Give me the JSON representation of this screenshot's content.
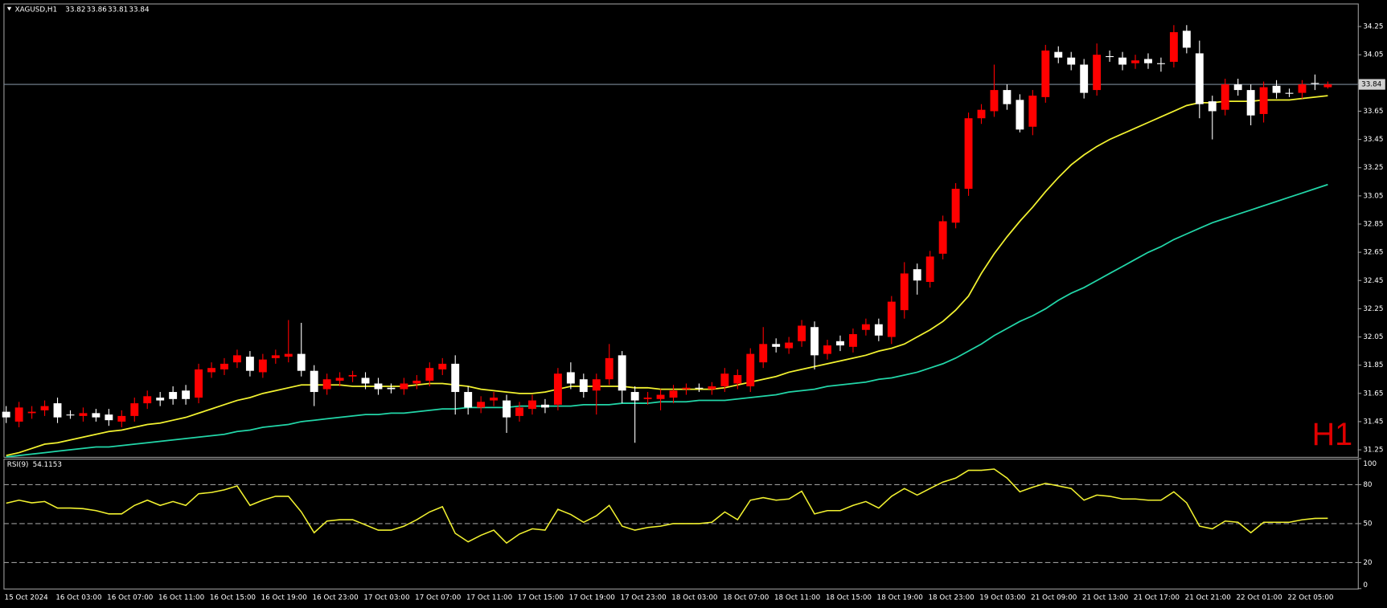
{
  "chart_data": [
    {
      "type": "candlestick",
      "title": "XAGUSD,H1",
      "watermark": "H1",
      "categories": [
        "15 Oct 2024",
        null,
        null,
        null,
        "16 Oct 03:00",
        null,
        null,
        null,
        "16 Oct 07:00",
        null,
        null,
        null,
        "16 Oct 11:00",
        null,
        null,
        null,
        "16 Oct 15:00",
        null,
        null,
        null,
        "16 Oct 19:00",
        null,
        null,
        null,
        "16 Oct 23:00",
        null,
        null,
        null,
        "17 Oct 03:00",
        null,
        null,
        null,
        "17 Oct 07:00",
        null,
        null,
        null,
        "17 Oct 11:00",
        null,
        null,
        null,
        "17 Oct 15:00",
        null,
        null,
        null,
        "17 Oct 19:00",
        null,
        null,
        null,
        "17 Oct 23:00",
        null,
        null,
        null,
        "18 Oct 03:00",
        null,
        null,
        null,
        "18 Oct 07:00",
        null,
        null,
        null,
        "18 Oct 11:00",
        null,
        null,
        null,
        "18 Oct 15:00",
        null,
        null,
        null,
        "18 Oct 19:00",
        null,
        null,
        null,
        "18 Oct 23:00",
        null,
        null,
        null,
        "19 Oct 03:00",
        null,
        null,
        null,
        "21 Oct 09:00",
        null,
        null,
        null,
        "21 Oct 13:00",
        null,
        null,
        null,
        "21 Oct 17:00",
        null,
        null,
        null,
        "21 Oct 21:00",
        null,
        null,
        null,
        "22 Oct 01:00",
        null,
        null,
        null,
        "22 Oct 05:00",
        null,
        null,
        null
      ],
      "open": [
        31.52,
        31.45,
        31.51,
        31.53,
        31.58,
        31.5,
        31.49,
        31.51,
        31.5,
        31.45,
        31.49,
        31.58,
        31.62,
        31.66,
        31.67,
        31.62,
        31.8,
        31.82,
        31.87,
        31.91,
        31.8,
        31.9,
        31.91,
        31.93,
        31.81,
        31.68,
        31.74,
        31.77,
        31.76,
        31.72,
        31.69,
        31.68,
        31.72,
        31.74,
        31.82,
        31.86,
        31.66,
        31.55,
        31.6,
        31.6,
        31.49,
        31.54,
        31.57,
        31.57,
        31.8,
        31.75,
        31.67,
        31.75,
        31.92,
        31.66,
        31.61,
        31.61,
        31.62,
        31.68,
        31.69,
        31.68,
        31.7,
        31.72,
        31.7,
        31.87,
        32.0,
        31.97,
        32.02,
        32.12,
        31.93,
        32.02,
        31.98,
        32.1,
        32.14,
        32.05,
        32.24,
        32.53,
        32.44,
        32.64,
        32.86,
        33.1,
        33.6,
        33.65,
        33.8,
        33.73,
        33.54,
        33.75,
        34.07,
        34.03,
        33.98,
        33.8,
        34.04,
        34.03,
        33.99,
        34.02,
        33.99,
        34.0,
        34.22,
        34.06,
        33.72,
        33.66,
        33.84,
        33.8,
        33.63,
        33.83,
        33.78,
        33.78,
        33.85,
        33.82
      ],
      "high": [
        31.56,
        31.59,
        31.56,
        31.6,
        31.62,
        31.53,
        31.55,
        31.54,
        31.54,
        31.53,
        31.62,
        31.67,
        31.66,
        31.7,
        31.71,
        31.86,
        31.87,
        31.9,
        31.96,
        31.95,
        31.93,
        31.96,
        32.17,
        32.15,
        31.85,
        31.79,
        31.8,
        31.81,
        31.8,
        31.76,
        31.72,
        31.76,
        31.78,
        31.87,
        31.9,
        31.92,
        31.7,
        31.63,
        31.66,
        31.64,
        31.59,
        31.64,
        31.61,
        31.83,
        31.87,
        31.79,
        31.79,
        32.0,
        31.95,
        31.7,
        31.66,
        31.68,
        31.71,
        31.72,
        31.72,
        31.73,
        31.83,
        31.82,
        31.97,
        32.12,
        32.04,
        32.05,
        32.17,
        32.16,
        32.03,
        32.06,
        32.11,
        32.18,
        32.18,
        32.34,
        32.58,
        32.57,
        32.66,
        32.91,
        33.14,
        33.64,
        33.7,
        33.98,
        33.84,
        33.77,
        33.8,
        34.12,
        34.11,
        34.07,
        34.02,
        34.13,
        34.08,
        34.07,
        34.05,
        34.06,
        34.03,
        34.26,
        34.26,
        34.15,
        33.76,
        33.88,
        33.88,
        33.84,
        33.86,
        33.87,
        33.81,
        33.87,
        33.91,
        33.86
      ],
      "low": [
        31.44,
        31.41,
        31.47,
        31.49,
        31.44,
        31.47,
        31.45,
        31.45,
        31.42,
        31.41,
        31.45,
        31.54,
        31.56,
        31.57,
        31.57,
        31.58,
        31.76,
        31.78,
        31.83,
        31.77,
        31.76,
        31.86,
        31.87,
        31.77,
        31.56,
        31.64,
        31.7,
        31.73,
        31.68,
        31.64,
        31.65,
        31.64,
        31.68,
        31.7,
        31.78,
        31.5,
        31.5,
        31.51,
        31.56,
        31.37,
        31.45,
        31.5,
        31.51,
        31.53,
        31.68,
        31.62,
        31.5,
        31.71,
        31.58,
        31.3,
        31.57,
        31.53,
        31.58,
        31.64,
        31.66,
        31.64,
        31.66,
        31.68,
        31.66,
        31.83,
        31.94,
        31.93,
        31.98,
        31.82,
        31.89,
        31.95,
        31.94,
        32.06,
        32.02,
        32.0,
        32.18,
        32.35,
        32.4,
        32.6,
        32.82,
        33.05,
        33.56,
        33.61,
        33.66,
        33.5,
        33.48,
        33.71,
        33.99,
        33.94,
        33.74,
        33.76,
        34.0,
        33.94,
        33.95,
        33.95,
        33.93,
        33.96,
        34.06,
        33.6,
        33.45,
        33.62,
        33.76,
        33.55,
        33.57,
        33.74,
        33.75,
        33.74,
        33.8,
        33.81
      ],
      "close": [
        31.48,
        31.55,
        31.52,
        31.56,
        31.48,
        31.5,
        31.51,
        31.48,
        31.46,
        31.49,
        31.58,
        31.63,
        31.6,
        31.61,
        31.61,
        31.82,
        31.83,
        31.86,
        31.92,
        31.81,
        31.89,
        31.92,
        31.93,
        31.81,
        31.66,
        31.75,
        31.76,
        31.78,
        31.72,
        31.68,
        31.68,
        31.72,
        31.74,
        31.83,
        31.86,
        31.66,
        31.55,
        31.59,
        31.62,
        31.48,
        31.55,
        31.6,
        31.55,
        31.79,
        31.72,
        31.66,
        31.75,
        31.9,
        31.67,
        31.6,
        31.62,
        31.64,
        31.67,
        31.69,
        31.69,
        31.7,
        31.79,
        31.78,
        31.93,
        32.0,
        31.98,
        32.01,
        32.13,
        31.92,
        31.99,
        31.99,
        32.07,
        32.14,
        32.06,
        32.3,
        32.5,
        32.45,
        32.62,
        32.87,
        33.1,
        33.6,
        33.66,
        33.8,
        33.7,
        33.52,
        33.76,
        34.08,
        34.03,
        33.98,
        33.78,
        34.05,
        34.04,
        33.98,
        34.01,
        33.99,
        33.99,
        34.21,
        34.1,
        33.7,
        33.65,
        33.84,
        33.8,
        33.62,
        33.82,
        33.78,
        33.78,
        33.84,
        33.85,
        33.84
      ],
      "up_color": "#ff0000",
      "down_color": "#ffffff",
      "price_line_color": "#7d8a99",
      "overlays": [
        {
          "color": "#f2f230",
          "values": [
            31.21,
            31.23,
            31.26,
            31.29,
            31.3,
            31.32,
            31.34,
            31.36,
            31.38,
            31.39,
            31.41,
            31.43,
            31.44,
            31.46,
            31.48,
            31.51,
            31.54,
            31.57,
            31.6,
            31.62,
            31.65,
            31.67,
            31.69,
            31.71,
            31.71,
            31.71,
            31.71,
            31.7,
            31.7,
            31.7,
            31.7,
            31.7,
            31.71,
            31.72,
            31.72,
            31.71,
            31.7,
            31.68,
            31.67,
            31.66,
            31.65,
            31.65,
            31.66,
            31.68,
            31.7,
            31.7,
            31.7,
            31.7,
            31.7,
            31.69,
            31.69,
            31.68,
            31.68,
            31.68,
            31.68,
            31.68,
            31.69,
            31.71,
            31.73,
            31.75,
            31.77,
            31.8,
            31.82,
            31.84,
            31.86,
            31.88,
            31.9,
            31.92,
            31.95,
            31.97,
            32.0,
            32.05,
            32.1,
            32.16,
            32.24,
            32.34,
            32.5,
            32.64,
            32.76,
            32.87,
            32.97,
            33.08,
            33.18,
            33.27,
            33.34,
            33.4,
            33.45,
            33.49,
            33.53,
            33.57,
            33.61,
            33.65,
            33.69,
            33.71,
            33.71,
            33.72,
            33.72,
            33.72,
            33.73,
            33.73,
            33.73,
            33.74,
            33.75,
            33.76
          ]
        },
        {
          "color": "#22d6a8",
          "values": [
            31.2,
            31.21,
            31.22,
            31.23,
            31.24,
            31.25,
            31.26,
            31.27,
            31.27,
            31.28,
            31.29,
            31.3,
            31.31,
            31.32,
            31.33,
            31.34,
            31.35,
            31.36,
            31.38,
            31.39,
            31.41,
            31.42,
            31.43,
            31.45,
            31.46,
            31.47,
            31.48,
            31.49,
            31.5,
            31.5,
            31.51,
            31.51,
            31.52,
            31.53,
            31.54,
            31.54,
            31.55,
            31.55,
            31.55,
            31.55,
            31.56,
            31.56,
            31.56,
            31.56,
            31.56,
            31.57,
            31.57,
            31.57,
            31.58,
            31.58,
            31.58,
            31.59,
            31.59,
            31.59,
            31.6,
            31.6,
            31.6,
            31.61,
            31.62,
            31.63,
            31.64,
            31.66,
            31.67,
            31.68,
            31.7,
            31.71,
            31.72,
            31.73,
            31.75,
            31.76,
            31.78,
            31.8,
            31.83,
            31.86,
            31.9,
            31.95,
            32.0,
            32.06,
            32.11,
            32.16,
            32.2,
            32.25,
            32.31,
            32.36,
            32.4,
            32.45,
            32.5,
            32.55,
            32.6,
            32.65,
            32.69,
            32.74,
            32.78,
            32.82,
            32.86,
            32.89,
            32.92,
            32.95,
            32.98,
            33.01,
            33.04,
            33.07,
            33.1,
            33.13
          ]
        }
      ],
      "ylim": [
        31.2,
        34.413
      ],
      "yticks": [
        34.25,
        34.05,
        33.85,
        33.65,
        33.45,
        33.25,
        33.05,
        32.85,
        32.65,
        32.45,
        32.25,
        32.05,
        31.85,
        31.65,
        31.45,
        31.25
      ]
    },
    {
      "type": "line",
      "series": [
        {
          "name": "RSI(9)",
          "color": "#f2f230",
          "values": [
            65.7,
            68,
            66,
            67,
            62,
            62,
            61.5,
            60,
            57.5,
            57.5,
            64,
            68,
            64,
            67,
            64,
            73,
            74,
            76,
            79,
            64,
            68,
            71,
            71,
            59,
            43,
            52,
            53,
            53,
            49,
            45,
            45,
            48,
            53,
            59,
            63,
            42.5,
            36,
            41,
            45,
            35,
            42,
            46,
            45,
            61,
            57,
            51,
            56,
            64,
            48,
            45,
            47,
            48,
            50,
            50,
            50,
            51,
            59,
            53,
            68,
            70,
            68,
            69,
            75,
            57.5,
            60,
            60,
            64,
            67,
            62,
            71,
            77,
            72,
            77,
            82,
            85,
            91,
            91,
            92,
            85,
            74.5,
            78,
            81,
            79,
            77,
            68,
            72,
            71,
            69,
            69,
            68,
            68,
            74.5,
            66,
            48,
            46,
            52,
            51,
            43,
            51,
            51,
            51,
            53,
            54,
            54.1153
          ]
        }
      ],
      "ylim": [
        0,
        100
      ],
      "yticks": [
        100,
        80,
        50,
        20,
        0
      ]
    }
  ]
}
